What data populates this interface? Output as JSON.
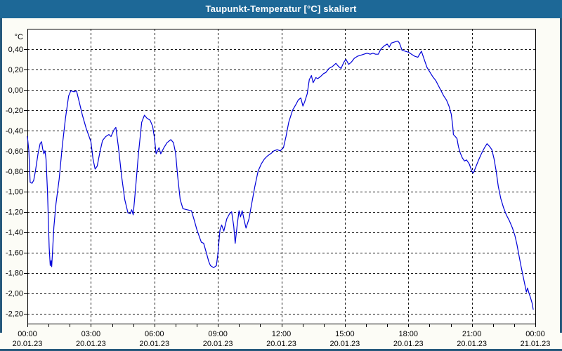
{
  "window": {
    "title": "Taupunkt-Temperatur [°C] skaliert"
  },
  "colors": {
    "titlebar": "#1d6897",
    "window_border": "#26597c",
    "window_background": "#fcfcf6",
    "plot_background": "#ffffff",
    "grid": "#1a1a1a",
    "line": "#0000d9",
    "text": "#000000",
    "title_text": "#ffffff"
  },
  "chart_data": {
    "type": "line",
    "title": "Taupunkt-Temperatur [°C] skaliert",
    "grid": "dashed",
    "legend": "none",
    "y_axis": {
      "unit": "°C",
      "min": -2.3,
      "max": 0.6,
      "tick_step": 0.2,
      "gridlines": [
        {
          "value": 0.4,
          "label": "0,40"
        },
        {
          "value": 0.2,
          "label": "0,20"
        },
        {
          "value": 0.0,
          "label": "0,00"
        },
        {
          "value": -0.2,
          "label": "-0,20"
        },
        {
          "value": -0.4,
          "label": "-0,40"
        },
        {
          "value": -0.6,
          "label": "-0,60"
        },
        {
          "value": -0.8,
          "label": "-0,80"
        },
        {
          "value": -1.0,
          "label": "-1,00"
        },
        {
          "value": -1.2,
          "label": "-1,20"
        },
        {
          "value": -1.4,
          "label": "-1,40"
        },
        {
          "value": -1.6,
          "label": "-1,60"
        },
        {
          "value": -1.8,
          "label": "-1,80"
        },
        {
          "value": -2.0,
          "label": "-2,00"
        },
        {
          "value": -2.2,
          "label": "-2,20"
        }
      ]
    },
    "x_axis": {
      "range_hours": [
        0,
        24
      ],
      "minor_tick_every_hours": 1,
      "major_ticks": [
        {
          "hour": 0,
          "time": "00:00",
          "date": "20.01.23"
        },
        {
          "hour": 3,
          "time": "03:00",
          "date": "20.01.23"
        },
        {
          "hour": 6,
          "time": "06:00",
          "date": "20.01.23"
        },
        {
          "hour": 9,
          "time": "09:00",
          "date": "20.01.23"
        },
        {
          "hour": 12,
          "time": "12:00",
          "date": "20.01.23"
        },
        {
          "hour": 15,
          "time": "15:00",
          "date": "20.01.23"
        },
        {
          "hour": 18,
          "time": "18:00",
          "date": "20.01.23"
        },
        {
          "hour": 21,
          "time": "21:00",
          "date": "20.01.23"
        },
        {
          "hour": 24,
          "time": "00:00",
          "date": "21.01.23"
        }
      ]
    },
    "series": [
      {
        "name": "Taupunkt-Temperatur",
        "color": "#0000d9",
        "points": [
          [
            0.0,
            -0.46
          ],
          [
            0.07,
            -0.6
          ],
          [
            0.13,
            -0.91
          ],
          [
            0.22,
            -0.92
          ],
          [
            0.3,
            -0.89
          ],
          [
            0.38,
            -0.8
          ],
          [
            0.5,
            -0.63
          ],
          [
            0.6,
            -0.53
          ],
          [
            0.67,
            -0.51
          ],
          [
            0.72,
            -0.58
          ],
          [
            0.78,
            -0.63
          ],
          [
            0.83,
            -0.6
          ],
          [
            0.88,
            -0.68
          ],
          [
            0.95,
            -1.0
          ],
          [
            1.03,
            -1.55
          ],
          [
            1.08,
            -1.73
          ],
          [
            1.12,
            -1.68
          ],
          [
            1.15,
            -1.74
          ],
          [
            1.25,
            -1.35
          ],
          [
            1.35,
            -1.12
          ],
          [
            1.5,
            -0.88
          ],
          [
            1.65,
            -0.55
          ],
          [
            1.8,
            -0.28
          ],
          [
            1.95,
            -0.06
          ],
          [
            2.05,
            -0.01
          ],
          [
            2.2,
            -0.02
          ],
          [
            2.32,
            -0.01
          ],
          [
            2.45,
            -0.12
          ],
          [
            2.6,
            -0.25
          ],
          [
            2.78,
            -0.38
          ],
          [
            3.0,
            -0.51
          ],
          [
            3.1,
            -0.68
          ],
          [
            3.2,
            -0.78
          ],
          [
            3.3,
            -0.75
          ],
          [
            3.42,
            -0.62
          ],
          [
            3.55,
            -0.5
          ],
          [
            3.7,
            -0.46
          ],
          [
            3.85,
            -0.44
          ],
          [
            3.95,
            -0.46
          ],
          [
            4.1,
            -0.39
          ],
          [
            4.18,
            -0.37
          ],
          [
            4.3,
            -0.56
          ],
          [
            4.45,
            -0.85
          ],
          [
            4.6,
            -1.08
          ],
          [
            4.75,
            -1.21
          ],
          [
            4.85,
            -1.22
          ],
          [
            4.93,
            -1.18
          ],
          [
            5.0,
            -1.23
          ],
          [
            5.1,
            -1.0
          ],
          [
            5.25,
            -0.62
          ],
          [
            5.4,
            -0.32
          ],
          [
            5.53,
            -0.25
          ],
          [
            5.65,
            -0.28
          ],
          [
            5.8,
            -0.3
          ],
          [
            5.92,
            -0.36
          ],
          [
            6.0,
            -0.47
          ],
          [
            6.08,
            -0.63
          ],
          [
            6.15,
            -0.6
          ],
          [
            6.22,
            -0.57
          ],
          [
            6.3,
            -0.63
          ],
          [
            6.45,
            -0.57
          ],
          [
            6.6,
            -0.52
          ],
          [
            6.78,
            -0.49
          ],
          [
            6.9,
            -0.52
          ],
          [
            7.0,
            -0.62
          ],
          [
            7.1,
            -0.85
          ],
          [
            7.22,
            -1.08
          ],
          [
            7.35,
            -1.17
          ],
          [
            7.55,
            -1.18
          ],
          [
            7.75,
            -1.19
          ],
          [
            7.88,
            -1.28
          ],
          [
            8.0,
            -1.37
          ],
          [
            8.15,
            -1.46
          ],
          [
            8.22,
            -1.5
          ],
          [
            8.33,
            -1.51
          ],
          [
            8.45,
            -1.6
          ],
          [
            8.57,
            -1.69
          ],
          [
            8.65,
            -1.73
          ],
          [
            8.8,
            -1.75
          ],
          [
            8.93,
            -1.73
          ],
          [
            9.0,
            -1.62
          ],
          [
            9.1,
            -1.38
          ],
          [
            9.18,
            -1.33
          ],
          [
            9.28,
            -1.39
          ],
          [
            9.42,
            -1.27
          ],
          [
            9.55,
            -1.22
          ],
          [
            9.65,
            -1.2
          ],
          [
            9.75,
            -1.34
          ],
          [
            9.82,
            -1.51
          ],
          [
            9.92,
            -1.32
          ],
          [
            10.0,
            -1.19
          ],
          [
            10.07,
            -1.25
          ],
          [
            10.15,
            -1.19
          ],
          [
            10.25,
            -1.29
          ],
          [
            10.33,
            -1.36
          ],
          [
            10.47,
            -1.27
          ],
          [
            10.6,
            -1.12
          ],
          [
            10.75,
            -0.95
          ],
          [
            10.9,
            -0.8
          ],
          [
            11.05,
            -0.73
          ],
          [
            11.2,
            -0.68
          ],
          [
            11.35,
            -0.65
          ],
          [
            11.55,
            -0.62
          ],
          [
            11.65,
            -0.6
          ],
          [
            11.8,
            -0.59
          ],
          [
            11.95,
            -0.6
          ],
          [
            12.1,
            -0.57
          ],
          [
            12.22,
            -0.46
          ],
          [
            12.35,
            -0.32
          ],
          [
            12.53,
            -0.2
          ],
          [
            12.7,
            -0.14
          ],
          [
            12.8,
            -0.1
          ],
          [
            12.92,
            -0.08
          ],
          [
            13.02,
            -0.16
          ],
          [
            13.1,
            -0.12
          ],
          [
            13.22,
            -0.04
          ],
          [
            13.32,
            0.1
          ],
          [
            13.42,
            0.14
          ],
          [
            13.5,
            0.07
          ],
          [
            13.63,
            0.12
          ],
          [
            13.72,
            0.11
          ],
          [
            13.85,
            0.13
          ],
          [
            14.0,
            0.16
          ],
          [
            14.1,
            0.17
          ],
          [
            14.25,
            0.21
          ],
          [
            14.42,
            0.23
          ],
          [
            14.58,
            0.26
          ],
          [
            14.7,
            0.23
          ],
          [
            14.82,
            0.21
          ],
          [
            14.95,
            0.27
          ],
          [
            15.05,
            0.3
          ],
          [
            15.18,
            0.25
          ],
          [
            15.3,
            0.27
          ],
          [
            15.45,
            0.31
          ],
          [
            15.6,
            0.33
          ],
          [
            15.75,
            0.34
          ],
          [
            15.9,
            0.35
          ],
          [
            16.05,
            0.36
          ],
          [
            16.2,
            0.35
          ],
          [
            16.33,
            0.36
          ],
          [
            16.45,
            0.35
          ],
          [
            16.58,
            0.35
          ],
          [
            16.7,
            0.4
          ],
          [
            16.85,
            0.43
          ],
          [
            17.0,
            0.45
          ],
          [
            17.1,
            0.42
          ],
          [
            17.2,
            0.46
          ],
          [
            17.35,
            0.47
          ],
          [
            17.5,
            0.48
          ],
          [
            17.58,
            0.46
          ],
          [
            17.65,
            0.42
          ],
          [
            17.7,
            0.39
          ],
          [
            17.85,
            0.38
          ],
          [
            18.0,
            0.37
          ],
          [
            18.15,
            0.35
          ],
          [
            18.3,
            0.33
          ],
          [
            18.45,
            0.32
          ],
          [
            18.62,
            0.38
          ],
          [
            18.75,
            0.3
          ],
          [
            18.88,
            0.22
          ],
          [
            19.0,
            0.18
          ],
          [
            19.15,
            0.13
          ],
          [
            19.3,
            0.09
          ],
          [
            19.45,
            0.03
          ],
          [
            19.55,
            -0.01
          ],
          [
            19.67,
            -0.06
          ],
          [
            19.8,
            -0.1
          ],
          [
            19.92,
            -0.16
          ],
          [
            20.03,
            -0.24
          ],
          [
            20.1,
            -0.36
          ],
          [
            20.13,
            -0.44
          ],
          [
            20.22,
            -0.46
          ],
          [
            20.3,
            -0.48
          ],
          [
            20.37,
            -0.56
          ],
          [
            20.45,
            -0.62
          ],
          [
            20.55,
            -0.67
          ],
          [
            20.65,
            -0.7
          ],
          [
            20.75,
            -0.69
          ],
          [
            20.88,
            -0.73
          ],
          [
            21.0,
            -0.8
          ],
          [
            21.07,
            -0.82
          ],
          [
            21.15,
            -0.78
          ],
          [
            21.3,
            -0.7
          ],
          [
            21.45,
            -0.63
          ],
          [
            21.6,
            -0.57
          ],
          [
            21.72,
            -0.53
          ],
          [
            21.85,
            -0.56
          ],
          [
            21.95,
            -0.59
          ],
          [
            22.05,
            -0.68
          ],
          [
            22.15,
            -0.8
          ],
          [
            22.25,
            -0.95
          ],
          [
            22.37,
            -1.07
          ],
          [
            22.5,
            -1.16
          ],
          [
            22.63,
            -1.23
          ],
          [
            22.78,
            -1.29
          ],
          [
            22.92,
            -1.36
          ],
          [
            23.03,
            -1.43
          ],
          [
            23.13,
            -1.52
          ],
          [
            23.22,
            -1.62
          ],
          [
            23.32,
            -1.73
          ],
          [
            23.42,
            -1.83
          ],
          [
            23.52,
            -1.93
          ],
          [
            23.58,
            -1.99
          ],
          [
            23.63,
            -1.95
          ],
          [
            23.7,
            -2.0
          ],
          [
            23.78,
            -2.05
          ],
          [
            23.85,
            -2.1
          ],
          [
            23.9,
            -2.16
          ]
        ]
      }
    ]
  }
}
